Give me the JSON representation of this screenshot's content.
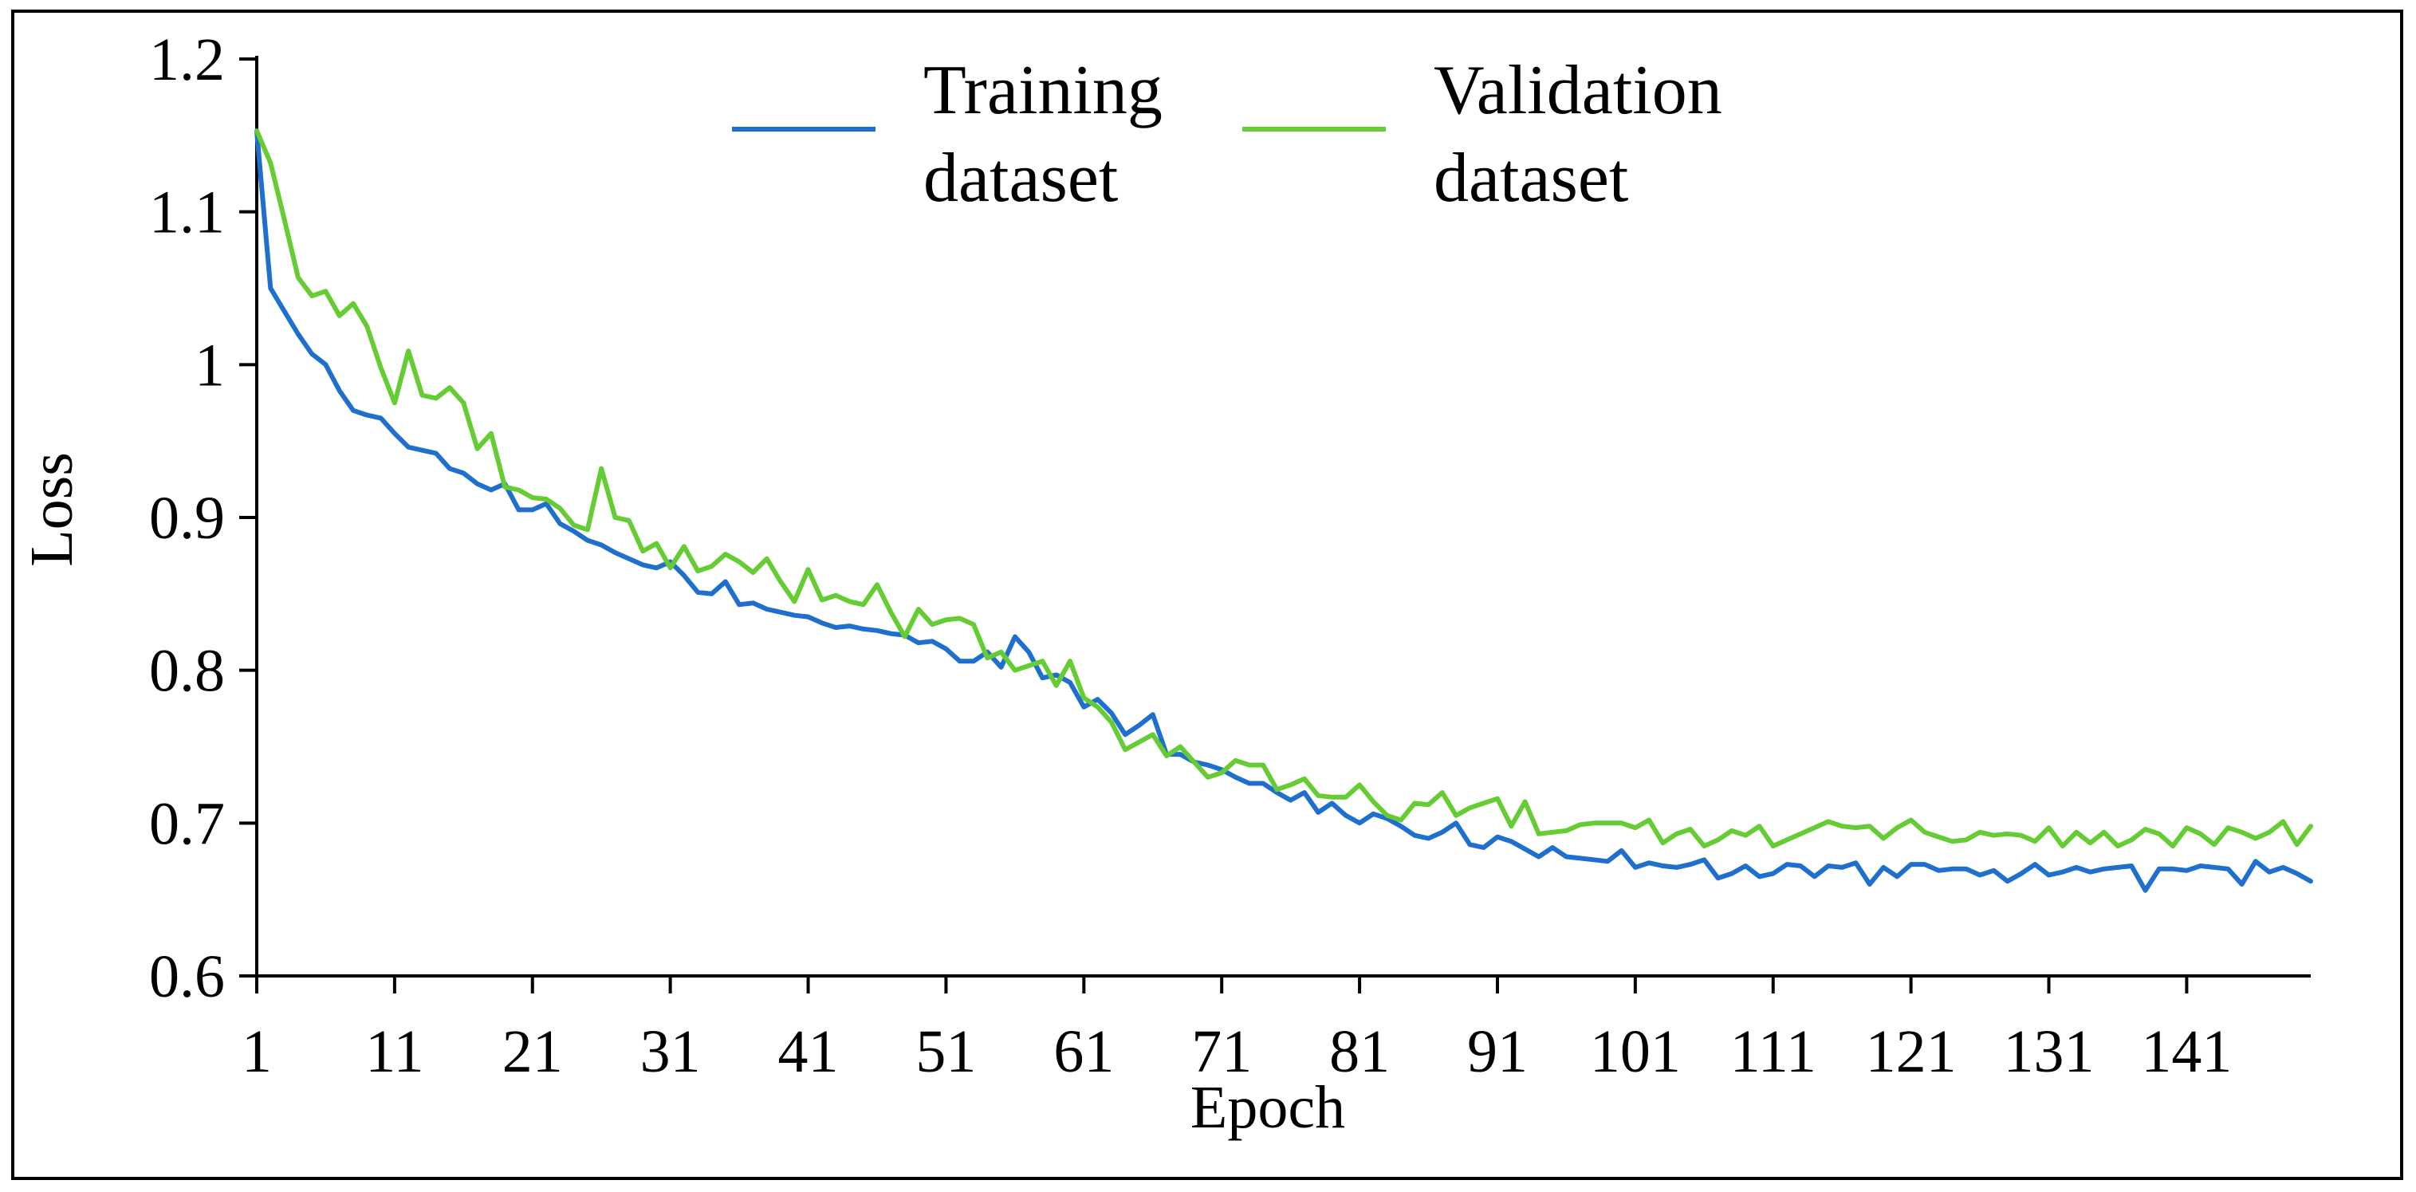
{
  "chart_data": {
    "type": "line",
    "title": "",
    "xlabel": "Epoch",
    "ylabel": "Loss",
    "xlim": [
      1,
      150
    ],
    "ylim": [
      0.6,
      1.2
    ],
    "yticks": [
      0.6,
      0.7,
      0.8,
      0.9,
      1.0,
      1.1,
      1.2
    ],
    "ytick_labels": [
      "0.6",
      "0.7",
      "0.8",
      "0.9",
      "1",
      "1.1",
      "1.2"
    ],
    "xticks": [
      1,
      11,
      21,
      31,
      41,
      51,
      61,
      71,
      81,
      91,
      101,
      111,
      121,
      131,
      141
    ],
    "xtick_labels": [
      "1",
      "11",
      "21",
      "31",
      "41",
      "51",
      "61",
      "71",
      "81",
      "91",
      "101",
      "111",
      "121",
      "131",
      "141"
    ],
    "grid": false,
    "legend_position": "top-center",
    "series": [
      {
        "name": "Training dataset",
        "legend_lines": [
          "Training",
          "dataset"
        ],
        "color": "#1f6fcf",
        "x_start": 1,
        "values": [
          1.153,
          1.05,
          1.035,
          1.02,
          1.007,
          1.0,
          0.983,
          0.97,
          0.967,
          0.965,
          0.955,
          0.946,
          0.944,
          0.942,
          0.932,
          0.929,
          0.922,
          0.918,
          0.922,
          0.905,
          0.905,
          0.909,
          0.896,
          0.891,
          0.885,
          0.882,
          0.877,
          0.873,
          0.869,
          0.867,
          0.871,
          0.862,
          0.851,
          0.85,
          0.858,
          0.843,
          0.844,
          0.84,
          0.838,
          0.836,
          0.835,
          0.831,
          0.828,
          0.829,
          0.827,
          0.826,
          0.824,
          0.823,
          0.818,
          0.819,
          0.814,
          0.806,
          0.806,
          0.812,
          0.802,
          0.822,
          0.812,
          0.795,
          0.797,
          0.792,
          0.776,
          0.781,
          0.772,
          0.758,
          0.764,
          0.771,
          0.745,
          0.745,
          0.74,
          0.738,
          0.735,
          0.73,
          0.726,
          0.726,
          0.72,
          0.715,
          0.72,
          0.707,
          0.713,
          0.705,
          0.7,
          0.706,
          0.703,
          0.698,
          0.692,
          0.69,
          0.694,
          0.7,
          0.686,
          0.684,
          0.691,
          0.688,
          0.683,
          0.678,
          0.684,
          0.678,
          0.677,
          0.676,
          0.675,
          0.682,
          0.671,
          0.674,
          0.672,
          0.671,
          0.673,
          0.676,
          0.664,
          0.667,
          0.672,
          0.665,
          0.667,
          0.673,
          0.672,
          0.665,
          0.672,
          0.671,
          0.674,
          0.66,
          0.671,
          0.665,
          0.673,
          0.673,
          0.669,
          0.67,
          0.67,
          0.666,
          0.669,
          0.662,
          0.667,
          0.673,
          0.666,
          0.668,
          0.671,
          0.668,
          0.67,
          0.671,
          0.672,
          0.656,
          0.67,
          0.67,
          0.669,
          0.672,
          0.671,
          0.67,
          0.66,
          0.675,
          0.668,
          0.671,
          0.667,
          0.662
        ]
      },
      {
        "name": "Validation dataset",
        "legend_lines": [
          "Validation",
          "dataset"
        ],
        "color": "#66cc33",
        "x_start": 1,
        "values": [
          1.153,
          1.132,
          1.095,
          1.057,
          1.045,
          1.048,
          1.032,
          1.04,
          1.025,
          0.998,
          0.975,
          1.009,
          0.98,
          0.978,
          0.985,
          0.975,
          0.945,
          0.955,
          0.92,
          0.918,
          0.913,
          0.912,
          0.906,
          0.895,
          0.892,
          0.932,
          0.9,
          0.898,
          0.878,
          0.883,
          0.867,
          0.881,
          0.865,
          0.868,
          0.876,
          0.871,
          0.864,
          0.873,
          0.858,
          0.845,
          0.866,
          0.846,
          0.849,
          0.845,
          0.843,
          0.856,
          0.838,
          0.822,
          0.84,
          0.83,
          0.833,
          0.834,
          0.83,
          0.808,
          0.812,
          0.8,
          0.803,
          0.806,
          0.79,
          0.806,
          0.782,
          0.776,
          0.766,
          0.748,
          0.753,
          0.758,
          0.744,
          0.75,
          0.74,
          0.73,
          0.733,
          0.741,
          0.738,
          0.738,
          0.722,
          0.725,
          0.729,
          0.718,
          0.717,
          0.717,
          0.725,
          0.714,
          0.705,
          0.702,
          0.713,
          0.712,
          0.72,
          0.705,
          0.71,
          0.713,
          0.716,
          0.698,
          0.714,
          0.693,
          0.694,
          0.695,
          0.699,
          0.7,
          0.7,
          0.7,
          0.697,
          0.702,
          0.687,
          0.693,
          0.696,
          0.685,
          0.689,
          0.695,
          0.692,
          0.698,
          0.685,
          0.689,
          0.693,
          0.697,
          0.701,
          0.698,
          0.697,
          0.698,
          0.69,
          0.697,
          0.702,
          0.694,
          0.691,
          0.688,
          0.689,
          0.694,
          0.692,
          0.693,
          0.692,
          0.688,
          0.697,
          0.685,
          0.694,
          0.687,
          0.694,
          0.685,
          0.689,
          0.696,
          0.693,
          0.685,
          0.697,
          0.693,
          0.686,
          0.697,
          0.694,
          0.69,
          0.694,
          0.701,
          0.686,
          0.698
        ]
      }
    ]
  }
}
